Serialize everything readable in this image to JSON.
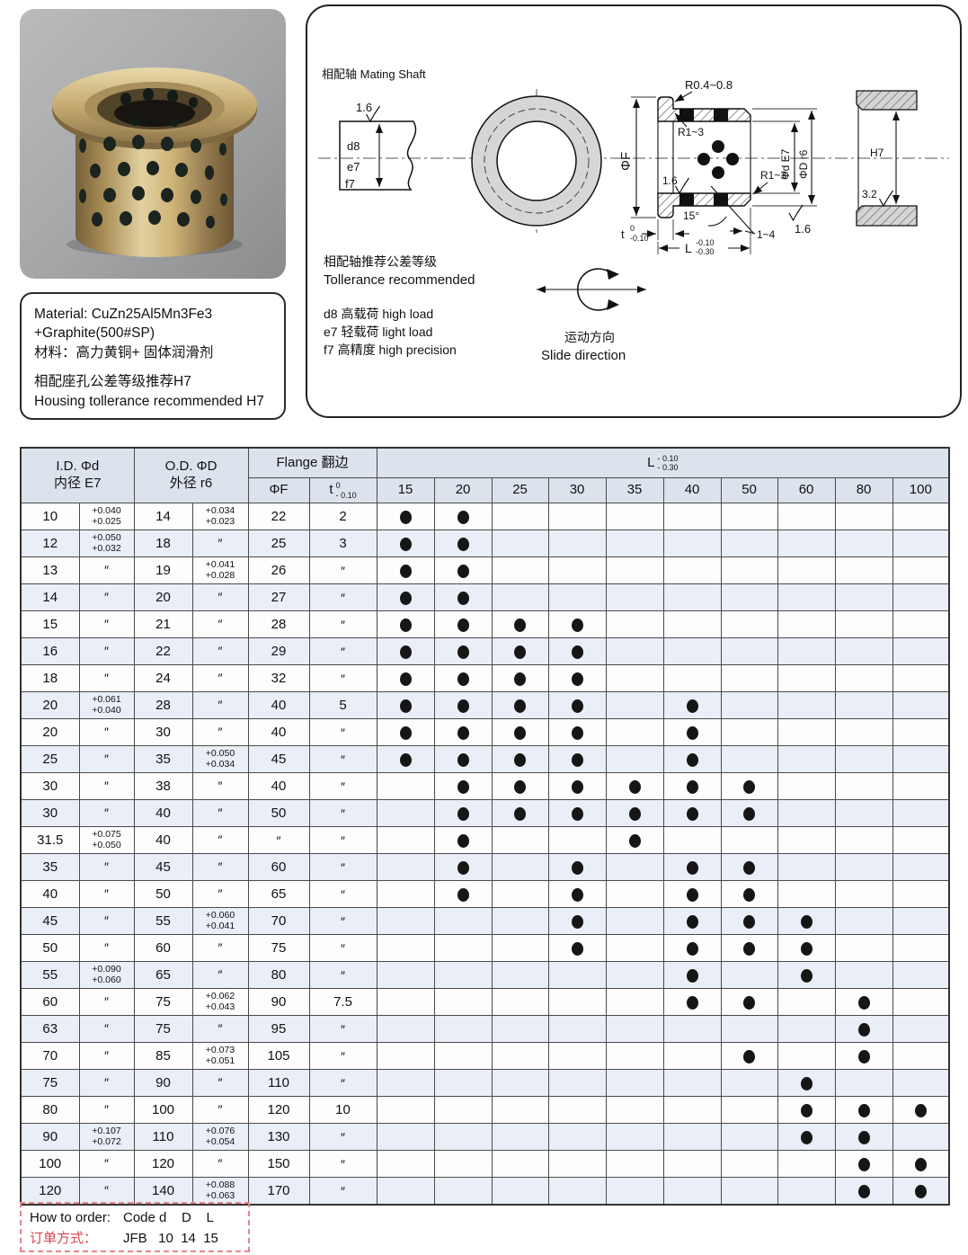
{
  "colors": {
    "accent_red": "#d7444c",
    "table_header_bg": "#dce3ed",
    "row_stripe": "#e9eef7",
    "bronze": "#c3a96f",
    "graphite_dot": "#1c2420"
  },
  "material_box": {
    "line1": "Material: CuZn25Al5Mn3Fe3",
    "line2": "+Graphite(500#SP)",
    "line3": "材料：高力黄铜+ 固体润滑剂",
    "line4": "相配座孔公差等级推荐H7",
    "line5": "Housing tollerance recommended H7"
  },
  "drawing": {
    "mating_shaft": "相配轴 Mating Shaft",
    "shaft_finish": "1.6",
    "shaft_d8": "d8",
    "shaft_e7": "e7",
    "shaft_f7": "f7",
    "r_top": "R0.4~0.8",
    "r_flange": "R1~3",
    "r_body": "R1~3",
    "phi_f": "ΦF",
    "bore_finish": "1.6",
    "angle": "15°",
    "phi_d": "Φd E7",
    "phi_D": "ΦD r6",
    "t_base": "t",
    "t_sup": "0",
    "t_sub": "-0.10",
    "L_base": "L",
    "L_sup": "-0.10",
    "L_sub": "-0.30",
    "chamfer": "1~4",
    "od_finish": "1.6",
    "housing_fit": "H7",
    "housing_finish": "3.2",
    "tol_title_cn": "相配轴推荐公差等级",
    "tol_title_en": "Tollerance recommended",
    "tol_d8": "d8  高载荷  high load",
    "tol_e7": "e7  轻载荷  light load",
    "tol_f7": "f7  高精度  high precision",
    "slide_cn": "运动方向",
    "slide_en": "Slide direction"
  },
  "table": {
    "header": {
      "id1": "I.D. Φd",
      "id2": "内径 E7",
      "od1": "O.D. ΦD",
      "od2": "外径 r6",
      "flange": "Flange 翻边",
      "f": "ΦF",
      "t_base": "t",
      "t_sup": "0",
      "t_sub": "- 0.10",
      "L_base": "L",
      "L_sup": "- 0.10",
      "L_sub": "- 0.30"
    },
    "l_columns": [
      "15",
      "20",
      "25",
      "30",
      "35",
      "40",
      "50",
      "60",
      "80",
      "100"
    ],
    "rows": [
      {
        "id": "10",
        "id_tol": "+0.040\n+0.025",
        "od": "14",
        "od_tol": "+0.034\n+0.023",
        "f": "22",
        "t": "2",
        "l": [
          "15",
          "20"
        ]
      },
      {
        "id": "12",
        "id_tol": "+0.050\n+0.032",
        "od": "18",
        "od_tol": "″",
        "f": "25",
        "t": "3",
        "l": [
          "15",
          "20"
        ]
      },
      {
        "id": "13",
        "id_tol": "″",
        "od": "19",
        "od_tol": "+0.041\n+0.028",
        "f": "26",
        "t": "″",
        "l": [
          "15",
          "20"
        ]
      },
      {
        "id": "14",
        "id_tol": "″",
        "od": "20",
        "od_tol": "″",
        "f": "27",
        "t": "″",
        "l": [
          "15",
          "20"
        ]
      },
      {
        "id": "15",
        "id_tol": "″",
        "od": "21",
        "od_tol": "″",
        "f": "28",
        "t": "″",
        "l": [
          "15",
          "20",
          "25",
          "30"
        ]
      },
      {
        "id": "16",
        "id_tol": "″",
        "od": "22",
        "od_tol": "″",
        "f": "29",
        "t": "″",
        "l": [
          "15",
          "20",
          "25",
          "30"
        ]
      },
      {
        "id": "18",
        "id_tol": "″",
        "od": "24",
        "od_tol": "″",
        "f": "32",
        "t": "″",
        "l": [
          "15",
          "20",
          "25",
          "30"
        ]
      },
      {
        "id": "20",
        "id_tol": "+0.061\n+0.040",
        "od": "28",
        "od_tol": "″",
        "f": "40",
        "t": "5",
        "l": [
          "15",
          "20",
          "25",
          "30",
          "40"
        ]
      },
      {
        "id": "20",
        "id_tol": "″",
        "od": "30",
        "od_tol": "″",
        "f": "40",
        "t": "″",
        "l": [
          "15",
          "20",
          "25",
          "30",
          "40"
        ]
      },
      {
        "id": "25",
        "id_tol": "″",
        "od": "35",
        "od_tol": "+0.050\n+0.034",
        "f": "45",
        "t": "″",
        "l": [
          "15",
          "20",
          "25",
          "30",
          "40"
        ]
      },
      {
        "id": "30",
        "id_tol": "″",
        "od": "38",
        "od_tol": "″",
        "f": "40",
        "t": "″",
        "l": [
          "20",
          "25",
          "30",
          "35",
          "40",
          "50"
        ]
      },
      {
        "id": "30",
        "id_tol": "″",
        "od": "40",
        "od_tol": "″",
        "f": "50",
        "t": "″",
        "l": [
          "20",
          "25",
          "30",
          "35",
          "40",
          "50"
        ]
      },
      {
        "id": "31.5",
        "id_tol": "+0.075\n+0.050",
        "od": "40",
        "od_tol": "″",
        "f": "″",
        "t": "″",
        "l": [
          "20",
          "35"
        ]
      },
      {
        "id": "35",
        "id_tol": "″",
        "od": "45",
        "od_tol": "″",
        "f": "60",
        "t": "″",
        "l": [
          "20",
          "30",
          "40",
          "50"
        ]
      },
      {
        "id": "40",
        "id_tol": "″",
        "od": "50",
        "od_tol": "″",
        "f": "65",
        "t": "″",
        "l": [
          "20",
          "30",
          "40",
          "50"
        ]
      },
      {
        "id": "45",
        "id_tol": "″",
        "od": "55",
        "od_tol": "+0.060\n+0.041",
        "f": "70",
        "t": "″",
        "l": [
          "30",
          "40",
          "50",
          "60"
        ]
      },
      {
        "id": "50",
        "id_tol": "″",
        "od": "60",
        "od_tol": "″",
        "f": "75",
        "t": "″",
        "l": [
          "30",
          "40",
          "50",
          "60"
        ]
      },
      {
        "id": "55",
        "id_tol": "+0.090\n+0.060",
        "od": "65",
        "od_tol": "″",
        "f": "80",
        "t": "″",
        "l": [
          "40",
          "60"
        ]
      },
      {
        "id": "60",
        "id_tol": "″",
        "od": "75",
        "od_tol": "+0.062\n+0.043",
        "f": "90",
        "t": "7.5",
        "l": [
          "40",
          "50",
          "80"
        ]
      },
      {
        "id": "63",
        "id_tol": "″",
        "od": "75",
        "od_tol": "″",
        "f": "95",
        "t": "″",
        "l": [
          "80"
        ]
      },
      {
        "id": "70",
        "id_tol": "″",
        "od": "85",
        "od_tol": "+0.073\n+0.051",
        "f": "105",
        "t": "″",
        "l": [
          "50",
          "80"
        ]
      },
      {
        "id": "75",
        "id_tol": "″",
        "od": "90",
        "od_tol": "″",
        "f": "110",
        "t": "″",
        "l": [
          "60"
        ]
      },
      {
        "id": "80",
        "id_tol": "″",
        "od": "100",
        "od_tol": "″",
        "f": "120",
        "t": "10",
        "l": [
          "60",
          "80",
          "100"
        ]
      },
      {
        "id": "90",
        "id_tol": "+0.107\n+0.072",
        "od": "110",
        "od_tol": "+0.076\n+0.054",
        "f": "130",
        "t": "″",
        "l": [
          "60",
          "80"
        ]
      },
      {
        "id": "100",
        "id_tol": "″",
        "od": "120",
        "od_tol": "″",
        "f": "150",
        "t": "″",
        "l": [
          "80",
          "100"
        ]
      },
      {
        "id": "120",
        "id_tol": "″",
        "od": "140",
        "od_tol": "+0.088\n+0.063",
        "f": "170",
        "t": "″",
        "l": [
          "80",
          "100"
        ]
      }
    ]
  },
  "order_box": {
    "label_en": "How to order: ",
    "cols_en": "Code d    D    L",
    "label_cn": "订单方式：",
    "code_row": "JFB   10  14  15"
  }
}
